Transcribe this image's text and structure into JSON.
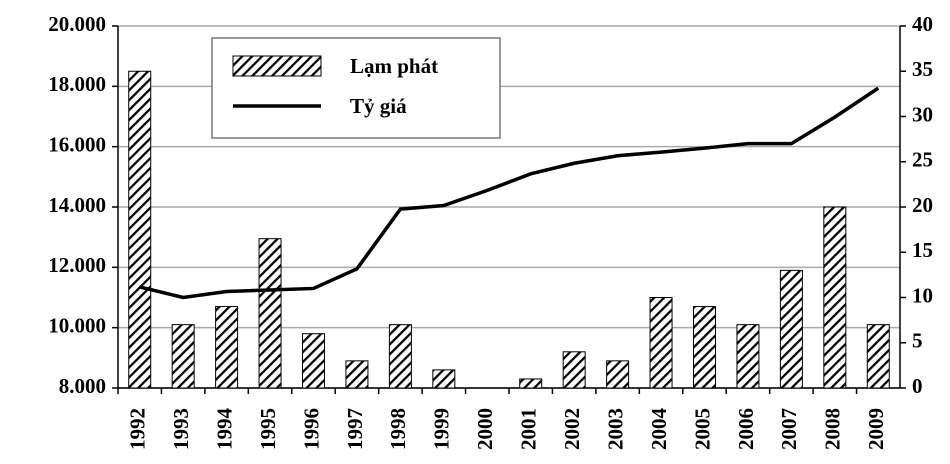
{
  "chart_data": {
    "type": "bar_line",
    "categories": [
      "1992",
      "1993",
      "1994",
      "1995",
      "1996",
      "1997",
      "1998",
      "1999",
      "2000",
      "2001",
      "2002",
      "2003",
      "2004",
      "2005",
      "2006",
      "2007",
      "2008",
      "2009"
    ],
    "series": [
      {
        "name": "Lạm phát",
        "type": "bar",
        "axis": "y2",
        "color": "#000000",
        "values": [
          35,
          7,
          9,
          16.5,
          6,
          3,
          7,
          2,
          0,
          1,
          4,
          3,
          10,
          9,
          7,
          13,
          20,
          7
        ]
      },
      {
        "name": "Tỷ giá",
        "type": "line",
        "axis": "y",
        "color": "#000000",
        "values": [
          11350,
          11000,
          11200,
          11250,
          11300,
          11950,
          13930,
          14050,
          14550,
          15100,
          15450,
          15700,
          15820,
          15950,
          16100,
          16100,
          16980,
          17940
        ]
      }
    ],
    "ylim": [
      8000,
      20000
    ],
    "yticks": [
      {
        "value": 8000,
        "label": "8.000"
      },
      {
        "value": 10000,
        "label": "10.000"
      },
      {
        "value": 12000,
        "label": "12.000"
      },
      {
        "value": 14000,
        "label": "14.000"
      },
      {
        "value": 16000,
        "label": "16.000"
      },
      {
        "value": 18000,
        "label": "18.000"
      },
      {
        "value": 20000,
        "label": "20.000"
      }
    ],
    "y2lim": [
      0,
      40
    ],
    "y2ticks": [
      0,
      5,
      10,
      15,
      20,
      25,
      30,
      35,
      40
    ],
    "grid": true,
    "legend": "upper left"
  }
}
